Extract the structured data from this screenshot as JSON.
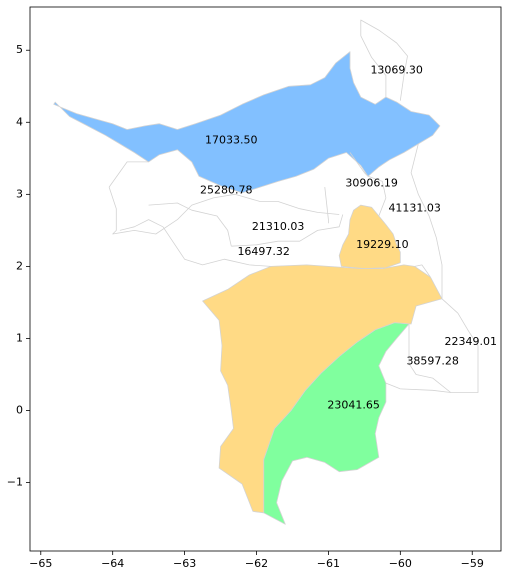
{
  "chart_data": {
    "type": "choropleth-map",
    "xlim": [
      -65.15,
      -58.6
    ],
    "ylim": [
      -1.95,
      5.6
    ],
    "grid": false,
    "x_ticks": [
      -65,
      -64,
      -63,
      -62,
      -61,
      -60,
      -59
    ],
    "y_ticks": [
      -1,
      0,
      1,
      2,
      3,
      4,
      5
    ],
    "colors": {
      "blue": "#82C0FF",
      "orange": "#FFDA85",
      "green": "#80FF9E",
      "none": "#FFFFFF",
      "border": "#D3D3D3"
    },
    "regions": [
      {
        "label": "17033.50",
        "label_at": [
          -62.35,
          3.75
        ],
        "fill": "blue",
        "polygon": [
          [
            -64.8,
            4.28
          ],
          [
            -64.72,
            4.2
          ],
          [
            -64.6,
            4.08
          ],
          [
            -64.35,
            3.95
          ],
          [
            -64.1,
            3.82
          ],
          [
            -63.9,
            3.7
          ],
          [
            -63.7,
            3.58
          ],
          [
            -63.5,
            3.45
          ],
          [
            -63.35,
            3.55
          ],
          [
            -63.1,
            3.62
          ],
          [
            -62.9,
            3.45
          ],
          [
            -62.8,
            3.25
          ],
          [
            -62.5,
            3.12
          ],
          [
            -62.2,
            3.02
          ],
          [
            -61.95,
            3.1
          ],
          [
            -61.7,
            3.18
          ],
          [
            -61.45,
            3.25
          ],
          [
            -61.2,
            3.35
          ],
          [
            -61.0,
            3.5
          ],
          [
            -60.75,
            3.58
          ],
          [
            -60.55,
            3.4
          ],
          [
            -60.45,
            3.25
          ],
          [
            -60.3,
            3.38
          ],
          [
            -60.15,
            3.48
          ],
          [
            -59.95,
            3.58
          ],
          [
            -59.75,
            3.7
          ],
          [
            -59.55,
            3.82
          ],
          [
            -59.45,
            3.95
          ],
          [
            -59.6,
            4.1
          ],
          [
            -59.85,
            4.15
          ],
          [
            -60.05,
            4.28
          ],
          [
            -60.2,
            4.35
          ],
          [
            -60.35,
            4.25
          ],
          [
            -60.55,
            4.35
          ],
          [
            -60.65,
            4.55
          ],
          [
            -60.7,
            4.75
          ],
          [
            -60.7,
            4.98
          ],
          [
            -60.9,
            4.82
          ],
          [
            -61.05,
            4.62
          ],
          [
            -61.25,
            4.52
          ],
          [
            -61.55,
            4.5
          ],
          [
            -61.9,
            4.38
          ],
          [
            -62.2,
            4.25
          ],
          [
            -62.5,
            4.1
          ],
          [
            -62.85,
            3.98
          ],
          [
            -63.1,
            3.9
          ],
          [
            -63.35,
            3.98
          ],
          [
            -63.55,
            3.95
          ],
          [
            -63.8,
            3.9
          ],
          [
            -64.0,
            3.98
          ],
          [
            -64.25,
            4.05
          ],
          [
            -64.5,
            4.12
          ],
          [
            -64.7,
            4.2
          ],
          [
            -64.82,
            4.25
          ]
        ]
      },
      {
        "label": "19229.10",
        "label_at": [
          -60.25,
          2.3
        ],
        "fill": "orange",
        "polygon": [
          [
            -60.82,
            2.0
          ],
          [
            -60.85,
            2.15
          ],
          [
            -60.8,
            2.3
          ],
          [
            -60.72,
            2.45
          ],
          [
            -60.7,
            2.65
          ],
          [
            -60.65,
            2.78
          ],
          [
            -60.55,
            2.85
          ],
          [
            -60.4,
            2.82
          ],
          [
            -60.3,
            2.7
          ],
          [
            -60.2,
            2.58
          ],
          [
            -60.1,
            2.45
          ],
          [
            -60.05,
            2.3
          ],
          [
            -60.0,
            2.2
          ],
          [
            -60.0,
            2.05
          ],
          [
            -60.2,
            1.98
          ],
          [
            -60.5,
            1.97
          ]
        ]
      },
      {
        "label": "23041.65",
        "label_at": [
          -60.65,
          0.07
        ],
        "fill": "green",
        "polygon": [
          [
            -59.88,
            1.2
          ],
          [
            -60.05,
            1.0
          ],
          [
            -60.2,
            0.82
          ],
          [
            -60.3,
            0.62
          ],
          [
            -60.2,
            0.38
          ],
          [
            -60.2,
            0.12
          ],
          [
            -60.3,
            -0.1
          ],
          [
            -60.35,
            -0.32
          ],
          [
            -60.3,
            -0.65
          ],
          [
            -60.6,
            -0.82
          ],
          [
            -60.85,
            -0.85
          ],
          [
            -61.05,
            -0.72
          ],
          [
            -61.3,
            -0.65
          ],
          [
            -61.5,
            -0.7
          ],
          [
            -61.65,
            -0.98
          ],
          [
            -61.72,
            -1.28
          ],
          [
            -61.6,
            -1.58
          ],
          [
            -61.9,
            -1.42
          ],
          [
            -61.9,
            -1.05
          ],
          [
            -61.9,
            -0.68
          ],
          [
            -61.75,
            -0.25
          ],
          [
            -61.52,
            0.0
          ],
          [
            -61.32,
            0.28
          ],
          [
            -61.1,
            0.52
          ],
          [
            -60.85,
            0.75
          ],
          [
            -60.6,
            0.95
          ],
          [
            -60.35,
            1.12
          ],
          [
            -60.08,
            1.22
          ]
        ]
      },
      {
        "label": "",
        "label_at": null,
        "fill": "orange",
        "polygon": [
          [
            -62.75,
            1.52
          ],
          [
            -62.4,
            1.68
          ],
          [
            -62.1,
            1.88
          ],
          [
            -61.8,
            2.0
          ],
          [
            -61.3,
            2.02
          ],
          [
            -61.0,
            2.0
          ],
          [
            -60.55,
            1.97
          ],
          [
            -60.25,
            1.97
          ],
          [
            -59.95,
            2.02
          ],
          [
            -59.8,
            2.0
          ],
          [
            -59.58,
            1.85
          ],
          [
            -59.42,
            1.55
          ],
          [
            -59.78,
            1.45
          ],
          [
            -59.85,
            1.2
          ],
          [
            -60.08,
            1.22
          ],
          [
            -60.35,
            1.12
          ],
          [
            -60.6,
            0.95
          ],
          [
            -60.85,
            0.75
          ],
          [
            -61.1,
            0.52
          ],
          [
            -61.32,
            0.28
          ],
          [
            -61.52,
            0.0
          ],
          [
            -61.75,
            -0.25
          ],
          [
            -61.9,
            -0.68
          ],
          [
            -61.9,
            -1.05
          ],
          [
            -61.9,
            -1.42
          ],
          [
            -62.05,
            -1.4
          ],
          [
            -62.2,
            -1.02
          ],
          [
            -62.52,
            -0.8
          ],
          [
            -62.5,
            -0.5
          ],
          [
            -62.32,
            -0.25
          ],
          [
            -62.35,
            0.0
          ],
          [
            -62.4,
            0.35
          ],
          [
            -62.5,
            0.55
          ],
          [
            -62.48,
            0.9
          ],
          [
            -62.52,
            1.25
          ]
        ]
      },
      {
        "label": "25280.78",
        "label_at": [
          -62.42,
          3.05
        ],
        "fill": "none",
        "polygon": []
      },
      {
        "label": "21310.03",
        "label_at": [
          -61.7,
          2.55
        ],
        "fill": "none",
        "polygon": []
      },
      {
        "label": "16497.32",
        "label_at": [
          -61.9,
          2.2
        ],
        "fill": "none",
        "polygon": []
      },
      {
        "label": "30906.19",
        "label_at": [
          -60.4,
          3.15
        ],
        "fill": "none",
        "polygon": []
      },
      {
        "label": "41131.03",
        "label_at": [
          -59.8,
          2.8
        ],
        "fill": "none",
        "polygon": []
      },
      {
        "label": "13069.30",
        "label_at": [
          -60.05,
          4.72
        ],
        "fill": "none",
        "polygon": []
      },
      {
        "label": "22349.01",
        "label_at": [
          -59.02,
          0.95
        ],
        "fill": "none",
        "polygon": []
      },
      {
        "label": "38597.28",
        "label_at": [
          -59.55,
          0.68
        ],
        "fill": "none",
        "polygon": []
      }
    ],
    "boundary_lines": [
      [
        [
          -64.05,
          3.1
        ],
        [
          -63.8,
          3.45
        ],
        [
          -63.5,
          3.45
        ]
      ],
      [
        [
          -64.05,
          3.1
        ],
        [
          -63.95,
          2.8
        ],
        [
          -63.95,
          2.5
        ],
        [
          -64.0,
          2.45
        ],
        [
          -63.7,
          2.5
        ],
        [
          -63.4,
          2.45
        ],
        [
          -63.1,
          2.65
        ],
        [
          -62.9,
          2.85
        ],
        [
          -62.6,
          2.95
        ],
        [
          -62.3,
          3.0
        ],
        [
          -61.95,
          2.9
        ],
        [
          -61.7,
          2.9
        ],
        [
          -61.4,
          2.8
        ],
        [
          -61.15,
          2.75
        ],
        [
          -60.85,
          2.72
        ]
      ],
      [
        [
          -63.5,
          2.85
        ],
        [
          -63.1,
          2.88
        ],
        [
          -62.9,
          2.78
        ],
        [
          -62.55,
          2.7
        ],
        [
          -62.4,
          2.5
        ],
        [
          -62.35,
          2.28
        ]
      ],
      [
        [
          -63.3,
          2.55
        ],
        [
          -63.0,
          2.1
        ],
        [
          -62.75,
          2.02
        ],
        [
          -62.45,
          2.1
        ],
        [
          -62.1,
          2.02
        ],
        [
          -61.8,
          2.0
        ]
      ],
      [
        [
          -62.35,
          2.28
        ],
        [
          -62.0,
          2.3
        ],
        [
          -61.7,
          2.35
        ],
        [
          -61.4,
          2.35
        ],
        [
          -61.15,
          2.5
        ],
        [
          -60.85,
          2.55
        ],
        [
          -60.8,
          2.72
        ]
      ],
      [
        [
          -60.7,
          3.58
        ],
        [
          -60.5,
          3.3
        ],
        [
          -60.45,
          3.25
        ]
      ],
      [
        [
          -61.05,
          3.1
        ],
        [
          -61.0,
          2.65
        ],
        [
          -61.0,
          2.6
        ]
      ],
      [
        [
          -60.2,
          4.35
        ],
        [
          -60.2,
          4.65
        ],
        [
          -60.4,
          4.9
        ],
        [
          -60.55,
          5.2
        ],
        [
          -60.55,
          5.42
        ],
        [
          -60.3,
          5.28
        ],
        [
          -60.05,
          5.1
        ],
        [
          -59.9,
          4.92
        ],
        [
          -59.95,
          4.65
        ],
        [
          -60.0,
          4.3
        ]
      ],
      [
        [
          -59.75,
          3.7
        ],
        [
          -59.85,
          3.3
        ],
        [
          -59.75,
          3.0
        ],
        [
          -59.6,
          2.7
        ],
        [
          -59.5,
          2.4
        ],
        [
          -59.42,
          2.02
        ],
        [
          -59.42,
          1.55
        ]
      ],
      [
        [
          -60.3,
          2.7
        ],
        [
          -60.2,
          2.95
        ],
        [
          -60.25,
          3.18
        ],
        [
          -60.45,
          3.25
        ]
      ],
      [
        [
          -59.58,
          1.85
        ],
        [
          -59.7,
          2.02
        ],
        [
          -59.8,
          2.0
        ]
      ],
      [
        [
          -59.42,
          1.55
        ],
        [
          -59.2,
          1.35
        ],
        [
          -59.05,
          1.1
        ],
        [
          -58.92,
          0.9
        ],
        [
          -58.92,
          0.25
        ],
        [
          -59.3,
          0.25
        ],
        [
          -59.55,
          0.45
        ],
        [
          -59.78,
          0.5
        ],
        [
          -59.88,
          0.65
        ],
        [
          -59.88,
          1.2
        ]
      ],
      [
        [
          -60.0,
          0.3
        ],
        [
          -59.55,
          0.28
        ],
        [
          -59.3,
          0.25
        ]
      ],
      [
        [
          -60.2,
          0.38
        ],
        [
          -60.05,
          0.32
        ],
        [
          -60.0,
          0.3
        ]
      ],
      [
        [
          -63.9,
          2.5
        ],
        [
          -63.7,
          2.55
        ],
        [
          -63.5,
          2.65
        ],
        [
          -63.3,
          2.55
        ]
      ]
    ]
  }
}
